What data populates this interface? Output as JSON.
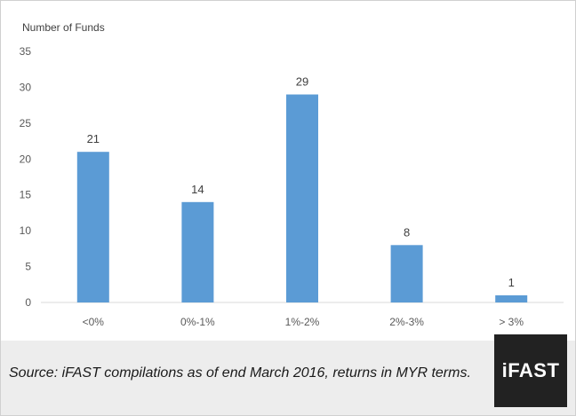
{
  "chart_data": {
    "type": "bar",
    "ylabel": "Number of Funds",
    "categories": [
      "<0%",
      "0%-1%",
      "1%-2%",
      "2%-3%",
      "> 3%"
    ],
    "values": [
      21,
      14,
      29,
      8,
      1
    ],
    "ylim": [
      0,
      35
    ],
    "yticks": [
      0,
      5,
      10,
      15,
      20,
      25,
      30,
      35
    ],
    "bar_color": "#5b9bd5",
    "grid": false,
    "data_labels": true
  },
  "footer": {
    "source": "Source: iFAST compilations as of end March 2016, returns in MYR terms.",
    "logo_text": "iFAST"
  }
}
